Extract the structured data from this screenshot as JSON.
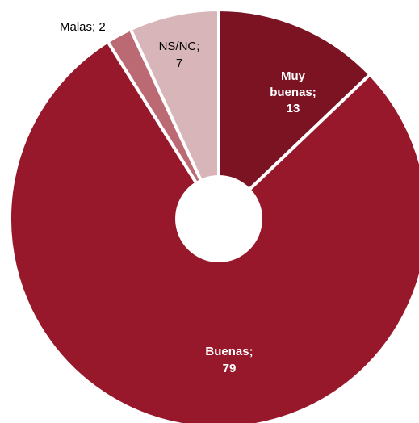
{
  "chart_data": {
    "type": "pie",
    "title": "",
    "slices": [
      {
        "label": "Muy buenas; 13",
        "category": "Muy buenas",
        "value": 13,
        "color": "#7b1322"
      },
      {
        "label": "Buenas; 79",
        "category": "Buenas",
        "value": 79,
        "color": "#97182b"
      },
      {
        "label": "Malas; 2",
        "category": "Malas",
        "value": 2,
        "color": "#bb6a74"
      },
      {
        "label": "NS/NC; 7",
        "category": "NS/NC",
        "value": 7,
        "color": "#d7b5b9"
      }
    ],
    "start_angle_deg": 0,
    "direction": "clockwise",
    "donut_hole": true
  }
}
